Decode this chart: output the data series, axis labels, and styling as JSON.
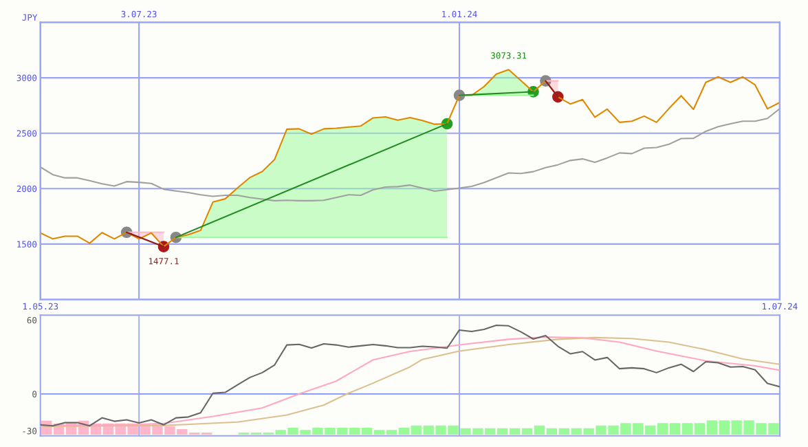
{
  "chart_data": [
    {
      "type": "line",
      "ylabel": "JPY",
      "x": [
        "2023-05-08",
        "2023-05-15",
        "2023-05-22",
        "2023-05-29",
        "2023-06-05",
        "2023-06-12",
        "2023-06-19",
        "2023-06-26",
        "2023-07-03",
        "2023-07-10",
        "2023-07-17",
        "2023-07-24",
        "2023-07-31",
        "2023-08-07",
        "2023-08-14",
        "2023-08-21",
        "2023-08-28",
        "2023-09-04",
        "2023-09-11",
        "2023-09-18",
        "2023-09-25",
        "2023-10-02",
        "2023-10-09",
        "2023-10-16",
        "2023-10-23",
        "2023-10-30",
        "2023-11-06",
        "2023-11-13",
        "2023-11-20",
        "2023-11-27",
        "2023-12-04",
        "2023-12-11",
        "2023-12-18",
        "2023-12-25",
        "2024-01-01",
        "2024-01-08",
        "2024-01-15",
        "2024-01-22",
        "2024-01-29",
        "2024-02-05",
        "2024-02-12",
        "2024-02-19",
        "2024-02-26",
        "2024-03-04",
        "2024-03-11",
        "2024-03-18",
        "2024-03-25",
        "2024-04-01",
        "2024-04-08",
        "2024-04-15",
        "2024-04-22",
        "2024-04-29",
        "2024-05-06",
        "2024-05-13",
        "2024-05-20",
        "2024-05-27",
        "2024-06-03",
        "2024-06-10",
        "2024-06-17",
        "2024-06-24",
        "2024-07-01"
      ],
      "series": [
        {
          "color": "#ffb6c8",
          "x": [
            "2023-06-26",
            "2023-07-03",
            "2023-07-10",
            "2023-07-17"
          ],
          "values": [
            1606,
            1606,
            1606,
            1606
          ],
          "lower": [
            1606,
            1547,
            1600,
            1477.1
          ],
          "upper": [
            1606,
            1606,
            1606,
            1606
          ]
        },
        {
          "color": "#98fb98",
          "x": [
            "2023-07-24",
            "2023-07-31",
            "2023-08-07",
            "2023-08-14",
            "2023-08-21",
            "2023-08-28",
            "2023-09-04",
            "2023-09-11",
            "2023-09-18",
            "2023-09-25",
            "2023-10-02",
            "2023-10-09",
            "2023-10-16",
            "2023-10-23",
            "2023-10-30",
            "2023-11-06",
            "2023-11-13",
            "2023-11-20",
            "2023-11-27",
            "2023-12-04",
            "2023-12-11",
            "2023-12-18",
            "2023-12-25"
          ],
          "upper": [
            1560,
            1585,
            1623,
            1879,
            1908,
            2006,
            2100,
            2154,
            2262,
            2536,
            2539,
            2492,
            2539,
            2545,
            2555,
            2565,
            2638,
            2647,
            2618,
            2641,
            2614,
            2581,
            2585
          ],
          "values": [
            1560,
            1560,
            1560,
            1560,
            1560,
            1560,
            1560,
            1560,
            1560,
            1560,
            1560,
            1560,
            1560,
            1560,
            1560,
            1560,
            1560,
            1560,
            1560,
            1560,
            1560,
            1560,
            1560
          ],
          "lower": [
            1560,
            1560,
            1560,
            1560,
            1560,
            1560,
            1560,
            1560,
            1560,
            1560,
            1560,
            1560,
            1560,
            1560,
            1560,
            1560,
            1560,
            1560,
            1560,
            1560,
            1560,
            1560,
            1560
          ]
        },
        {
          "color": "#98fb98",
          "x": [
            "2024-01-01",
            "2024-01-08",
            "2024-01-15",
            "2024-01-22",
            "2024-01-29",
            "2024-02-05",
            "2024-02-12"
          ],
          "upper": [
            2842,
            2842,
            2920,
            3033,
            3073.31,
            2974,
            2874
          ],
          "values": [
            2842,
            2842,
            2842,
            2842,
            2842,
            2842,
            2842
          ],
          "lower": [
            2842,
            2842,
            2842,
            2842,
            2842,
            2842,
            2842
          ]
        },
        {
          "color": "#ffb6c8",
          "x": [
            "2024-02-19",
            "2024-02-26"
          ],
          "values": [
            2972,
            2972
          ],
          "lower": [
            2972,
            2828
          ],
          "upper": [
            2972,
            2972
          ]
        },
        {
          "color": "#a0a0a0",
          "values": [
            2195,
            2126,
            2097,
            2097,
            2071,
            2044,
            2024,
            2063,
            2057,
            2047,
            1995,
            1979,
            1965,
            1944,
            1930,
            1940,
            1940,
            1920,
            1906,
            1891,
            1895,
            1891,
            1891,
            1895,
            1920,
            1945,
            1940,
            1989,
            2014,
            2018,
            2032,
            2005,
            1977,
            1991,
            2005,
            2020,
            2055,
            2098,
            2141,
            2137,
            2153,
            2190,
            2215,
            2254,
            2268,
            2238,
            2277,
            2322,
            2316,
            2365,
            2371,
            2400,
            2452,
            2454,
            2517,
            2559,
            2585,
            2608,
            2608,
            2633,
            2721
          ]
        },
        {
          "color": "#dd8800",
          "values": [
            1600,
            1547,
            1571,
            1571,
            1508,
            1603,
            1547,
            1606,
            1547,
            1600,
            1477.1,
            1560,
            1585,
            1623,
            1879,
            1908,
            2006,
            2100,
            2154,
            2262,
            2536,
            2539,
            2492,
            2539,
            2545,
            2555,
            2565,
            2638,
            2647,
            2618,
            2641,
            2614,
            2581,
            2585,
            2842,
            2842,
            2920,
            3033,
            3073.31,
            2974,
            2874,
            2972,
            2828,
            2764,
            2803,
            2644,
            2717,
            2598,
            2608,
            2654,
            2598,
            2721,
            2838,
            2715,
            2959,
            3008,
            2959,
            3008,
            2936,
            2721,
            2777
          ]
        },
        {
          "color": "#8b1a1a",
          "x": [
            "2023-06-26",
            "2023-07-17"
          ],
          "values": [
            1606,
            1477.1
          ]
        },
        {
          "color": "#228b22",
          "x": [
            "2023-07-24",
            "2023-12-25"
          ],
          "values": [
            1560,
            2585
          ]
        },
        {
          "color": "#228b22",
          "x": [
            "2024-01-01",
            "2024-02-12"
          ],
          "values": [
            2842,
            2874
          ]
        },
        {
          "color": "#8b1a1a",
          "x": [
            "2024-02-19",
            "2024-02-26"
          ],
          "values": [
            2972,
            2828
          ]
        },
        {
          "type": "scatter",
          "marker": "circle",
          "color": "#888888",
          "x": [
            "2023-06-26",
            "2023-07-24",
            "2024-01-01",
            "2024-02-19"
          ],
          "values": [
            1606,
            1560,
            2842,
            2972
          ]
        },
        {
          "type": "scatter",
          "marker": "circle",
          "color": "#22a022",
          "x": [
            "2023-12-25",
            "2024-02-12"
          ],
          "values": [
            2585,
            2874
          ]
        },
        {
          "type": "scatter",
          "marker": "circle",
          "color": "#aa1a1a",
          "x": [
            "2023-07-17",
            "2024-02-26"
          ],
          "values": [
            1477.1,
            2828
          ]
        }
      ],
      "xlim": [
        "2023-05-08",
        "2024-07-01"
      ],
      "xticks": [
        {
          "value": "2023-05-08",
          "label": "1.05.23"
        },
        {
          "value": "2024-07-01",
          "label": "1.07.24"
        }
      ],
      "x2lim": [
        "2023-05-08",
        "2024-07-01"
      ],
      "x2ticks": [
        {
          "value": "2023-07-03",
          "label": "3.07.23"
        },
        {
          "value": "2024-01-01",
          "label": "1.01.24"
        }
      ],
      "ylim": [
        1000,
        3500
      ],
      "yticks": [
        1500,
        2000,
        2500,
        3000
      ],
      "grid": true,
      "annotations": [
        {
          "text": "3073.31",
          "x": "2024-01-29",
          "y": 3073.31
        },
        {
          "text": "1477.1",
          "x": "2023-07-17",
          "y": 1477.1
        }
      ]
    },
    {
      "type": "line",
      "x": [
        "2023-05-08",
        "2023-05-15",
        "2023-05-22",
        "2023-05-29",
        "2023-06-05",
        "2023-06-12",
        "2023-06-19",
        "2023-06-26",
        "2023-07-03",
        "2023-07-10",
        "2023-07-17",
        "2023-07-24",
        "2023-07-31",
        "2023-08-07",
        "2023-08-14",
        "2023-08-21",
        "2023-08-28",
        "2023-09-04",
        "2023-09-11",
        "2023-09-18",
        "2023-09-25",
        "2023-10-02",
        "2023-10-09",
        "2023-10-16",
        "2023-10-23",
        "2023-10-30",
        "2023-11-06",
        "2023-11-13",
        "2023-11-20",
        "2023-11-27",
        "2023-12-04",
        "2023-12-11",
        "2023-12-18",
        "2023-12-25",
        "2024-01-01",
        "2024-01-08",
        "2024-01-15",
        "2024-01-22",
        "2024-01-29",
        "2024-02-05",
        "2024-02-12",
        "2024-02-19",
        "2024-02-26",
        "2024-03-04",
        "2024-03-11",
        "2024-03-18",
        "2024-03-25",
        "2024-04-01",
        "2024-04-08",
        "2024-04-15",
        "2024-04-22",
        "2024-04-29",
        "2024-05-06",
        "2024-05-13",
        "2024-05-20",
        "2024-05-27",
        "2024-06-03",
        "2024-06-10",
        "2024-06-17",
        "2024-06-24",
        "2024-07-01"
      ],
      "series": [
        {
          "type": "bar",
          "x": [
            "2023-05-11T12:00",
            "2023-05-18T12:00",
            "2023-05-25T12:00",
            "2023-06-01T12:00",
            "2023-06-08T12:00",
            "2023-06-15T12:00",
            "2023-06-22T12:00",
            "2023-06-29T12:00",
            "2023-07-06T12:00",
            "2023-07-13T12:00",
            "2023-07-20T12:00",
            "2023-07-27T12:00",
            "2023-08-03T12:00",
            "2023-08-10T12:00",
            "2023-08-17T12:00",
            "2023-08-24T12:00",
            "2023-08-31T12:00",
            "2023-09-07T12:00",
            "2023-09-14T12:00",
            "2023-09-21T12:00",
            "2023-09-28T12:00",
            "2023-10-05T12:00",
            "2023-10-12T12:00",
            "2023-10-19T12:00",
            "2023-10-26T12:00",
            "2023-11-02T12:00",
            "2023-11-09T12:00",
            "2023-11-16T12:00",
            "2023-11-23T12:00",
            "2023-11-30T12:00",
            "2023-12-07T12:00",
            "2023-12-14T12:00",
            "2023-12-21T12:00",
            "2023-12-28T12:00",
            "2024-01-04T12:00",
            "2024-01-11T12:00",
            "2024-01-18T12:00",
            "2024-01-25T12:00",
            "2024-02-01T12:00",
            "2024-02-08T12:00",
            "2024-02-15T12:00",
            "2024-02-22T12:00",
            "2024-02-29T12:00",
            "2024-03-07T12:00",
            "2024-03-14T12:00",
            "2024-03-21T12:00",
            "2024-03-28T12:00",
            "2024-04-04T12:00",
            "2024-04-11T12:00",
            "2024-04-18T12:00",
            "2024-04-25T12:00",
            "2024-05-02T12:00",
            "2024-05-09T12:00",
            "2024-05-16T12:00",
            "2024-05-23T12:00",
            "2024-05-30T12:00",
            "2024-06-06T12:00",
            "2024-06-13T12:00",
            "2024-06-20T12:00",
            "2024-06-27T12:00"
          ],
          "values": [
            11.3,
            9,
            9,
            11.3,
            9,
            9,
            9,
            9,
            8.5,
            8.5,
            6.7,
            4.4,
            1.7,
            1.7,
            null,
            null,
            1.7,
            1.7,
            1.7,
            3.7,
            5.6,
            3.7,
            5.6,
            5.6,
            5.6,
            5.6,
            5.6,
            3.7,
            3.7,
            5.6,
            7.4,
            7.4,
            7.4,
            7.4,
            5.2,
            5.2,
            5.2,
            5.2,
            5.2,
            5.2,
            7.4,
            5.2,
            5.2,
            5.2,
            5.2,
            7.4,
            7.4,
            9.3,
            9.3,
            7.4,
            9.3,
            9.3,
            9.3,
            9.3,
            11.6,
            11.6,
            11.6,
            11.6,
            9.3,
            9.3
          ],
          "base": [
            -33,
            -33,
            -33,
            -33,
            -33,
            -33,
            -33,
            -33,
            -33,
            -33,
            -33,
            -33,
            -33,
            -33,
            null,
            null,
            -33,
            -33,
            -33,
            -33,
            -33,
            -33,
            -33,
            -33,
            -33,
            -33,
            -33,
            -33,
            -33,
            -33,
            -33,
            -33,
            -33,
            -33,
            -33,
            -33,
            -33,
            -33,
            -33,
            -33,
            -33,
            -33,
            -33,
            -33,
            -33,
            -33,
            -33,
            -33,
            -33,
            -33,
            -33,
            -33,
            -33,
            -33,
            -33,
            -33,
            -33,
            -33,
            -33,
            -33
          ],
          "colors": [
            "#ffb6c8",
            "#ffb6c8",
            "#ffb6c8",
            "#ffb6c8",
            "#ffb6c8",
            "#ffb6c8",
            "#ffb6c8",
            "#ffb6c8",
            "#ffb6c8",
            "#ffb6c8",
            "#ffb6c8",
            "#ffb6c8",
            "#ffb6c8",
            "#ffb6c8",
            null,
            null,
            "#98fb98",
            "#98fb98",
            "#98fb98",
            "#98fb98",
            "#98fb98",
            "#98fb98",
            "#98fb98",
            "#98fb98",
            "#98fb98",
            "#98fb98",
            "#98fb98",
            "#98fb98",
            "#98fb98",
            "#98fb98",
            "#98fb98",
            "#98fb98",
            "#98fb98",
            "#98fb98",
            "#98fb98",
            "#98fb98",
            "#98fb98",
            "#98fb98",
            "#98fb98",
            "#98fb98",
            "#98fb98",
            "#98fb98",
            "#98fb98",
            "#98fb98",
            "#98fb98",
            "#98fb98",
            "#98fb98",
            "#98fb98",
            "#98fb98",
            "#98fb98",
            "#98fb98",
            "#98fb98",
            "#98fb98",
            "#98fb98",
            "#98fb98",
            "#98fb98",
            "#98fb98",
            "#98fb98",
            "#98fb98",
            "#98fb98"
          ]
        },
        {
          "color": "#dcc090",
          "x": [
            "2023-05-08",
            "2023-07-17",
            "2023-08-28",
            "2023-09-25",
            "2023-10-16",
            "2023-10-30",
            "2023-11-13",
            "2023-12-04",
            "2023-12-11",
            "2024-01-01",
            "2024-01-29",
            "2024-02-26",
            "2024-03-18",
            "2024-04-08",
            "2024-04-29",
            "2024-05-20",
            "2024-06-10",
            "2024-07-01"
          ],
          "values": [
            -26.3,
            -25.6,
            -22.8,
            -17.1,
            -9,
            0.6,
            8.8,
            22,
            28,
            34.8,
            40.1,
            44.4,
            45.8,
            45,
            42.1,
            36,
            28.4,
            24.1
          ]
        },
        {
          "color": "#ffa8c0",
          "x": [
            "2023-05-08",
            "2023-07-03",
            "2023-07-17",
            "2023-08-14",
            "2023-09-11",
            "2023-10-02",
            "2023-10-23",
            "2023-11-13",
            "2023-12-04",
            "2024-01-01",
            "2024-01-29",
            "2024-02-19",
            "2024-03-11",
            "2024-04-01",
            "2024-04-22",
            "2024-05-20",
            "2024-06-17",
            "2024-07-01"
          ],
          "values": [
            -25.6,
            -24.7,
            -24,
            -18.2,
            -11.4,
            0.1,
            10.4,
            27.7,
            34.5,
            39.8,
            44.4,
            46.2,
            45.6,
            42.1,
            34.8,
            26.9,
            22.8,
            19.3
          ]
        },
        {
          "color": "#666666",
          "values": [
            -25.1,
            -25.9,
            -23.3,
            -23.3,
            -25.9,
            -19.4,
            -22.2,
            -21,
            -23.5,
            -21,
            -25.1,
            -19.4,
            -18.7,
            -15.3,
            0.6,
            1.3,
            7.4,
            13.4,
            17.3,
            23.5,
            39.8,
            40.3,
            37.3,
            40.7,
            39.8,
            38,
            39.1,
            40.1,
            39.1,
            37.6,
            37.6,
            38.7,
            38.2,
            37.2,
            51.9,
            50.7,
            52.4,
            55.8,
            55.3,
            50.4,
            44.6,
            47.4,
            38.7,
            32.6,
            34.4,
            27.6,
            29.6,
            20.5,
            21.2,
            20.5,
            17.3,
            21.2,
            24.1,
            18.2,
            26.2,
            25.3,
            21.8,
            22.3,
            19.6,
            8.6,
            5.9
          ]
        }
      ],
      "xlim": [
        "2023-05-08",
        "2024-07-01"
      ],
      "ylim": [
        -34,
        64
      ],
      "yticks": [
        60,
        0,
        -30
      ],
      "tick_labels": "y",
      "ref_lines": [
        {
          "axis": "y",
          "value": 0,
          "label": null,
          "color": "#8090f0"
        },
        {
          "axis": "x",
          "value": "2023-07-03",
          "label": null,
          "color": "#9aa5f5"
        },
        {
          "axis": "x",
          "value": "2024-01-01",
          "label": null,
          "color": "#9aa5f5"
        }
      ]
    }
  ]
}
